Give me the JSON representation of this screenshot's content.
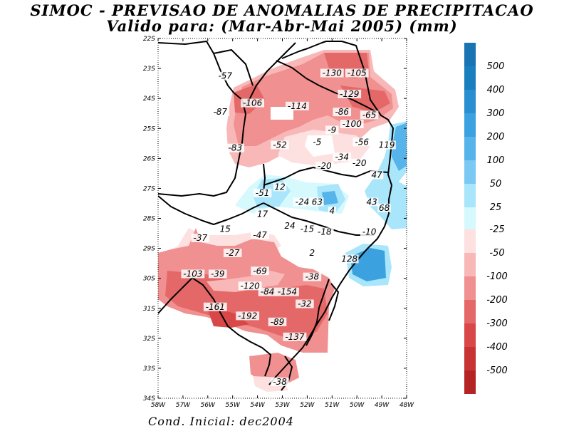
{
  "title_line1": "SIMOC - PREVISAO DE ANOMALIAS DE PRECIPITACAO",
  "title_line2": "Valido para: (Mar-Abr-Mai 2005) (mm)",
  "footer": "Cond. Inicial: dec2004",
  "axes": {
    "lat_labels": [
      "22S",
      "23S",
      "24S",
      "25S",
      "26S",
      "27S",
      "28S",
      "29S",
      "30S",
      "31S",
      "32S",
      "33S",
      "34S"
    ],
    "lon_labels": [
      "58W",
      "57W",
      "56W",
      "55W",
      "54W",
      "53W",
      "52W",
      "51W",
      "50W",
      "49W",
      "48W"
    ]
  },
  "legend": {
    "positive": [
      {
        "label": "500",
        "color": "#1a7fbf"
      },
      {
        "label": "400",
        "color": "#2a8fd0"
      },
      {
        "label": "300",
        "color": "#3ba2df"
      },
      {
        "label": "200",
        "color": "#56b4ea"
      },
      {
        "label": "100",
        "color": "#7bc9f3"
      },
      {
        "label": "50",
        "color": "#a9e6fb"
      },
      {
        "label": "25",
        "color": "#d6f9fd"
      }
    ],
    "top_color": "#1a74b3",
    "negative": [
      {
        "label": "-25",
        "color": "#fde1e1"
      },
      {
        "label": "-50",
        "color": "#f8b8b8"
      },
      {
        "label": "-100",
        "color": "#f09090"
      },
      {
        "label": "-200",
        "color": "#e56868"
      },
      {
        "label": "-300",
        "color": "#d84848"
      },
      {
        "label": "-400",
        "color": "#c83434"
      },
      {
        "label": "-500",
        "color": "#b52424"
      }
    ],
    "bottom_color": "#a51c1c"
  },
  "values": [
    {
      "lon": -55.3,
      "lat": -23.3,
      "v": "-57"
    },
    {
      "lon": -54.2,
      "lat": -24.2,
      "v": "-106"
    },
    {
      "lon": -55.5,
      "lat": -24.5,
      "v": "-87"
    },
    {
      "lon": -52.4,
      "lat": -24.3,
      "v": "-114"
    },
    {
      "lon": -51.0,
      "lat": -23.2,
      "v": "-130"
    },
    {
      "lon": -50.0,
      "lat": -23.2,
      "v": "-105"
    },
    {
      "lon": -50.3,
      "lat": -23.9,
      "v": "-129"
    },
    {
      "lon": -50.6,
      "lat": -24.5,
      "v": "-86"
    },
    {
      "lon": -49.5,
      "lat": -24.6,
      "v": "-65"
    },
    {
      "lon": -50.2,
      "lat": -24.9,
      "v": "-100"
    },
    {
      "lon": -51.0,
      "lat": -25.1,
      "v": "-9"
    },
    {
      "lon": -49.8,
      "lat": -25.5,
      "v": "-56"
    },
    {
      "lon": -48.8,
      "lat": -25.6,
      "v": "119"
    },
    {
      "lon": -51.6,
      "lat": -25.5,
      "v": "-5"
    },
    {
      "lon": -53.1,
      "lat": -25.6,
      "v": "-52"
    },
    {
      "lon": -54.9,
      "lat": -25.7,
      "v": "-83"
    },
    {
      "lon": -50.6,
      "lat": -26.0,
      "v": "-34"
    },
    {
      "lon": -49.9,
      "lat": -26.2,
      "v": "-20"
    },
    {
      "lon": -51.3,
      "lat": -26.3,
      "v": "-20"
    },
    {
      "lon": -49.2,
      "lat": -26.6,
      "v": "47"
    },
    {
      "lon": -53.1,
      "lat": -27.0,
      "v": "12"
    },
    {
      "lon": -53.8,
      "lat": -27.2,
      "v": "-51"
    },
    {
      "lon": -52.2,
      "lat": -27.5,
      "v": "-24"
    },
    {
      "lon": -51.6,
      "lat": -27.5,
      "v": "63"
    },
    {
      "lon": -49.4,
      "lat": -27.5,
      "v": "43"
    },
    {
      "lon": -48.9,
      "lat": -27.7,
      "v": "68"
    },
    {
      "lon": -51.0,
      "lat": -27.8,
      "v": "4"
    },
    {
      "lon": -53.8,
      "lat": -27.9,
      "v": "17"
    },
    {
      "lon": -55.3,
      "lat": -28.4,
      "v": "15"
    },
    {
      "lon": -52.7,
      "lat": -28.3,
      "v": "24"
    },
    {
      "lon": -52.0,
      "lat": -28.4,
      "v": "-15"
    },
    {
      "lon": -51.3,
      "lat": -28.5,
      "v": "-18"
    },
    {
      "lon": -49.5,
      "lat": -28.5,
      "v": "-10"
    },
    {
      "lon": -53.9,
      "lat": -28.6,
      "v": "-47"
    },
    {
      "lon": -56.3,
      "lat": -28.7,
      "v": "-37"
    },
    {
      "lon": -55.0,
      "lat": -29.2,
      "v": "-27"
    },
    {
      "lon": -51.8,
      "lat": -29.2,
      "v": "2"
    },
    {
      "lon": -50.3,
      "lat": -29.4,
      "v": "128"
    },
    {
      "lon": -56.6,
      "lat": -29.9,
      "v": "-103"
    },
    {
      "lon": -55.6,
      "lat": -29.9,
      "v": "-39"
    },
    {
      "lon": -53.9,
      "lat": -29.8,
      "v": "-69"
    },
    {
      "lon": -51.8,
      "lat": -30.0,
      "v": "-38"
    },
    {
      "lon": -54.3,
      "lat": -30.3,
      "v": "-120"
    },
    {
      "lon": -53.6,
      "lat": -30.5,
      "v": "-84"
    },
    {
      "lon": -52.8,
      "lat": -30.5,
      "v": "-154"
    },
    {
      "lon": -52.1,
      "lat": -30.9,
      "v": "-32"
    },
    {
      "lon": -55.7,
      "lat": -31.0,
      "v": "-161"
    },
    {
      "lon": -54.4,
      "lat": -31.3,
      "v": "-192"
    },
    {
      "lon": -53.2,
      "lat": -31.5,
      "v": "-89"
    },
    {
      "lon": -52.5,
      "lat": -32.0,
      "v": "-137"
    },
    {
      "lon": -53.1,
      "lat": -33.5,
      "v": "-38"
    }
  ]
}
